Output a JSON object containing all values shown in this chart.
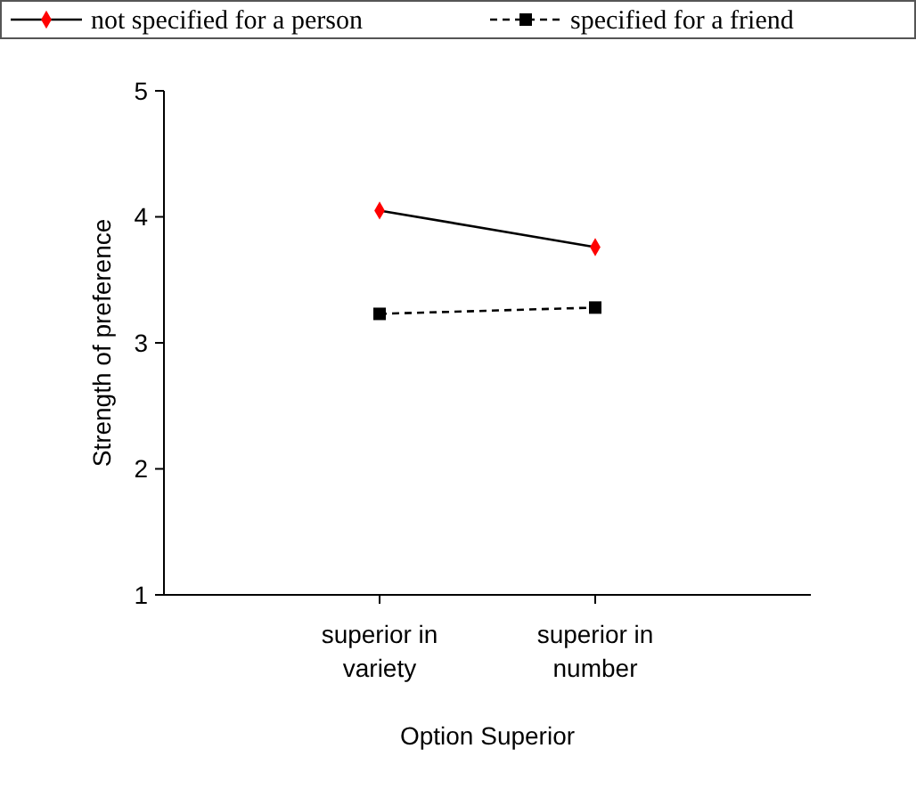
{
  "chart_data": {
    "type": "line",
    "xlabel": "Option Superior",
    "ylabel": "Strength of preference",
    "categories": [
      "superior in variety",
      "superior in number"
    ],
    "ylim": [
      1,
      5
    ],
    "yticks": [
      1,
      2,
      3,
      4,
      5
    ],
    "legend": "top",
    "grid": false,
    "series": [
      {
        "name": "not specified for a person",
        "color": "#ff0000",
        "values": [
          4.05,
          3.76
        ],
        "marker": "diamond",
        "line_style": "solid"
      },
      {
        "name": "specified for a friend",
        "color": "#000000",
        "values": [
          3.23,
          3.28
        ],
        "marker": "square",
        "line_style": "dashed"
      }
    ]
  }
}
